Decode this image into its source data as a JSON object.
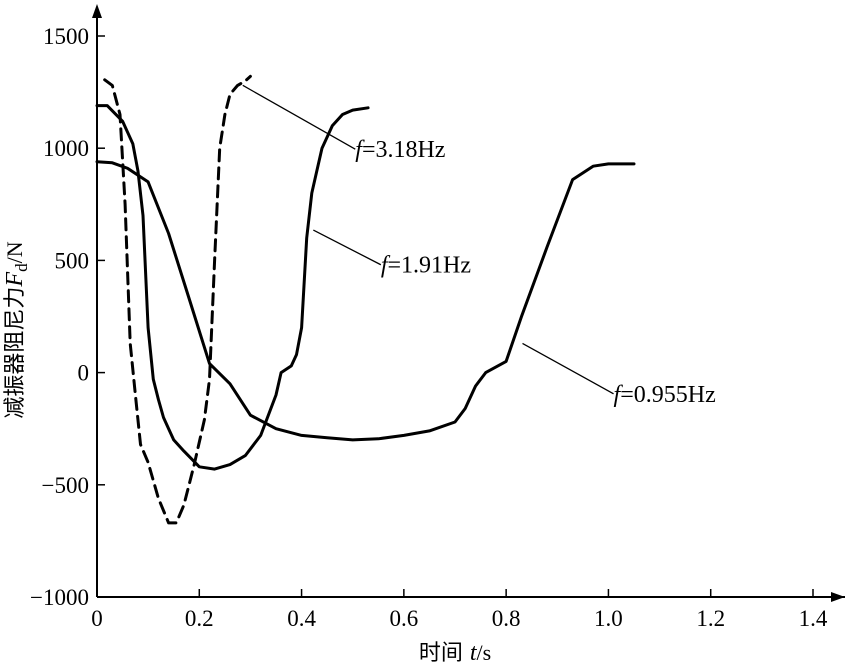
{
  "chart_data": {
    "type": "line",
    "title": "",
    "xlabel": "时间 t/s",
    "ylabel": "减振器阻尼力F d /N",
    "ylabel_parts": {
      "cn": "减振器阻尼力",
      "sym": "F",
      "sub": "d",
      "unit": "/N"
    },
    "xlabel_parts": {
      "cn": "时间 ",
      "sym": "t",
      "unit": "/s"
    },
    "xlim": [
      0,
      1.4
    ],
    "ylim": [
      -1000,
      1500
    ],
    "xticks": [
      0,
      0.2,
      0.4,
      0.6,
      0.8,
      1.0,
      1.2,
      1.4
    ],
    "xtick_labels": [
      "0",
      "0.2",
      "0.4",
      "0.6",
      "0.8",
      "1.0",
      "1.2",
      "1.4"
    ],
    "yticks": [
      -1000,
      -500,
      0,
      500,
      1000,
      1500
    ],
    "ytick_labels": [
      "−1000",
      "−500",
      "0",
      "500",
      "1000",
      "1500"
    ],
    "grid": false,
    "series": [
      {
        "name": "f=3.18Hz",
        "style": "dashed",
        "color": "#000000",
        "x": [
          0.015,
          0.03,
          0.045,
          0.055,
          0.065,
          0.075,
          0.085,
          0.1,
          0.12,
          0.14,
          0.155,
          0.17,
          0.19,
          0.21,
          0.22,
          0.23,
          0.24,
          0.25,
          0.26,
          0.275,
          0.29,
          0.3
        ],
        "y": [
          1305,
          1280,
          1150,
          750,
          130,
          -100,
          -320,
          -400,
          -560,
          -670,
          -670,
          -590,
          -410,
          -210,
          -30,
          500,
          1000,
          1150,
          1240,
          1280,
          1300,
          1320
        ]
      },
      {
        "name": "f=1.91Hz",
        "style": "solid",
        "color": "#000000",
        "x": [
          0,
          0.02,
          0.05,
          0.07,
          0.08,
          0.09,
          0.1,
          0.11,
          0.12,
          0.13,
          0.14,
          0.15,
          0.17,
          0.2,
          0.23,
          0.26,
          0.29,
          0.32,
          0.35,
          0.36,
          0.38,
          0.39,
          0.4,
          0.41,
          0.42,
          0.43,
          0.44,
          0.46,
          0.48,
          0.5,
          0.53
        ],
        "y": [
          1190,
          1190,
          1120,
          1020,
          900,
          700,
          200,
          -30,
          -120,
          -200,
          -250,
          -300,
          -350,
          -420,
          -430,
          -410,
          -370,
          -280,
          -100,
          0,
          30,
          80,
          200,
          600,
          800,
          900,
          1000,
          1100,
          1150,
          1170,
          1180
        ]
      },
      {
        "name": "f=0.955Hz",
        "style": "solid",
        "color": "#000000",
        "x": [
          0,
          0.03,
          0.06,
          0.1,
          0.14,
          0.18,
          0.22,
          0.26,
          0.3,
          0.35,
          0.4,
          0.45,
          0.5,
          0.55,
          0.6,
          0.65,
          0.7,
          0.72,
          0.74,
          0.76,
          0.8,
          0.83,
          0.88,
          0.93,
          0.97,
          1.0,
          1.05
        ],
        "y": [
          940,
          935,
          910,
          850,
          620,
          330,
          40,
          -50,
          -190,
          -250,
          -280,
          -290,
          -300,
          -295,
          -280,
          -260,
          -220,
          -160,
          -60,
          0,
          50,
          250,
          560,
          860,
          920,
          930,
          930
        ]
      }
    ],
    "annotations": [
      {
        "series": "f=3.18Hz",
        "sym": "f",
        "text": "=3.18Hz",
        "label_at": [
          0.505,
          960
        ],
        "points_to": [
          0.285,
          1280
        ]
      },
      {
        "series": "f=1.91Hz",
        "sym": "f",
        "text": "=1.91Hz",
        "label_at": [
          0.555,
          445
        ],
        "points_to": [
          0.423,
          635
        ]
      },
      {
        "series": "f=0.955Hz",
        "sym": "f",
        "text": "=0.955Hz",
        "label_at": [
          1.01,
          -130
        ],
        "points_to": [
          0.832,
          130
        ]
      }
    ]
  }
}
